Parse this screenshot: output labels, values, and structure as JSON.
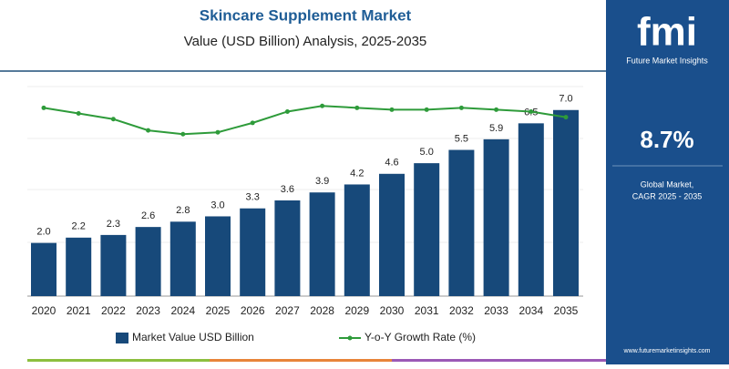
{
  "chart_data": {
    "type": "bar",
    "title": "Skincare Supplement Market",
    "subtitle": "Value (USD Billion) Analysis, 2025-2035",
    "categories": [
      "2020",
      "2021",
      "2022",
      "2023",
      "2024",
      "2025",
      "2026",
      "2027",
      "2028",
      "2029",
      "2030",
      "2031",
      "2032",
      "2033",
      "2034",
      "2035"
    ],
    "series": [
      {
        "name": "Market Value USD Billion",
        "color": "#17497a",
        "values": [
          2.0,
          2.2,
          2.3,
          2.6,
          2.8,
          3.0,
          3.3,
          3.6,
          3.9,
          4.2,
          4.6,
          5.0,
          5.5,
          5.9,
          6.5,
          7.0
        ],
        "value_labels": [
          "2.0",
          "2.2",
          "2.3",
          "2.6",
          "2.8",
          "3.0",
          "3.3",
          "3.6",
          "3.9",
          "4.2",
          "4.6",
          "5.0",
          "5.5",
          "5.9",
          "6.5",
          "7.0"
        ]
      },
      {
        "name": "Y-o-Y Growth Rate (%)",
        "color": "#2e9b3a",
        "type": "line",
        "axis": "y2",
        "values": [
          10.0,
          9.7,
          9.4,
          8.8,
          8.6,
          8.7,
          9.2,
          9.8,
          10.1,
          10.0,
          9.9,
          9.9,
          10.0,
          9.9,
          9.8,
          9.5
        ]
      }
    ],
    "ylim": [
      0,
      8.5
    ],
    "y2lim": [
      0,
      12
    ],
    "panel": {
      "logo": "fmi",
      "brand": "Future Market Insights",
      "cagr": "8.7%",
      "cagr_label_1": "Global Market,",
      "cagr_label_2": "CAGR 2025 - 2035",
      "website": "www.futuremarketinsights.com"
    }
  }
}
